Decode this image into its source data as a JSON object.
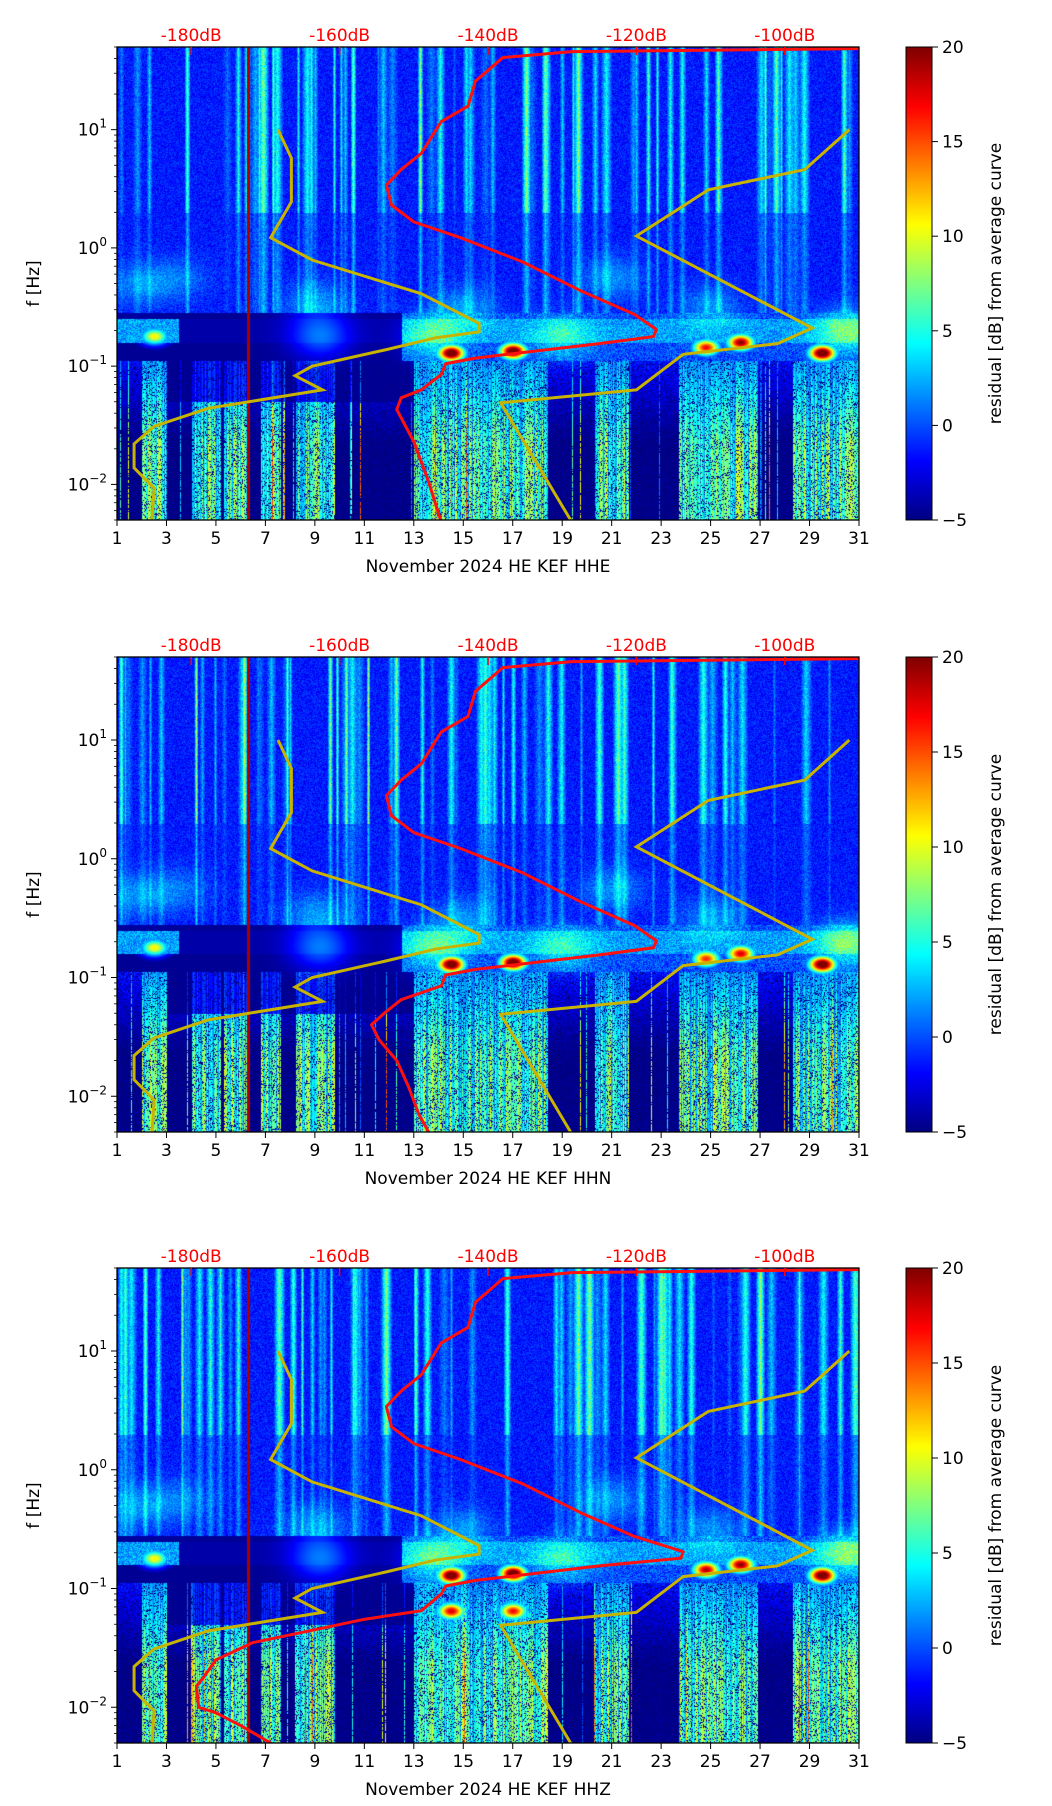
{
  "figure": {
    "ylabel": "f [Hz]",
    "colorbar_label": "residual [dB] from average curve",
    "colorbar_ticks": [
      "20",
      "15",
      "10",
      "5",
      "0",
      "−5"
    ],
    "colorbar_range": [
      -5,
      20
    ],
    "x_ticks": [
      "1",
      "3",
      "5",
      "7",
      "9",
      "11",
      "13",
      "15",
      "17",
      "19",
      "21",
      "23",
      "25",
      "27",
      "29",
      "31"
    ],
    "x_range_days": [
      1,
      31
    ],
    "y_ticks": [
      {
        "base": "10",
        "exp": "−2",
        "value": 0.01
      },
      {
        "base": "10",
        "exp": "−1",
        "value": 0.1
      },
      {
        "base": "10",
        "exp": "0",
        "value": 1
      },
      {
        "base": "10",
        "exp": "1",
        "value": 10
      }
    ],
    "y_range_hz": [
      0.005,
      50
    ],
    "top_ticks": [
      {
        "label": "-180dB",
        "db": -180
      },
      {
        "label": "-160dB",
        "db": -160
      },
      {
        "label": "-140dB",
        "db": -140
      },
      {
        "label": "-120dB",
        "db": -120
      },
      {
        "label": "-100dB",
        "db": -100
      }
    ],
    "db_axis_map": {
      "db_at_day4": -180,
      "db_per_day": 3.3333
    },
    "colors": {
      "power_curve": "#ff1010",
      "noise_models": "#c8b400",
      "label_red": "#ff0000"
    },
    "noise_model_low": [
      [
        -168.3,
        10
      ],
      [
        -166.5,
        5.75
      ],
      [
        -166.5,
        2.45
      ],
      [
        -169.3,
        1.22
      ],
      [
        -163.7,
        0.79
      ],
      [
        -149,
        0.41
      ],
      [
        -141.2,
        0.23
      ],
      [
        -141.2,
        0.195
      ],
      [
        -147,
        0.174
      ],
      [
        -153.7,
        0.138
      ],
      [
        -163.7,
        0.1
      ],
      [
        -166,
        0.083
      ],
      [
        -162.3,
        0.063
      ],
      [
        -177.7,
        0.044
      ],
      [
        -185,
        0.031
      ],
      [
        -187.7,
        0.022
      ],
      [
        -187.7,
        0.0138
      ],
      [
        -185,
        0.0093
      ],
      [
        -185.3,
        0.0048
      ]
    ],
    "noise_model_high": [
      [
        -91.3,
        10
      ],
      [
        -97.3,
        4.6
      ],
      [
        -110.3,
        3.1
      ],
      [
        -120,
        1.26
      ],
      [
        -96.3,
        0.21
      ],
      [
        -101,
        0.155
      ],
      [
        -113.7,
        0.126
      ],
      [
        -120,
        0.063
      ],
      [
        -138.3,
        0.049
      ],
      [
        -128.7,
        0.0048
      ]
    ]
  },
  "chart_data": [
    {
      "type": "heatmap",
      "title": "",
      "xlabel": "November 2024 HE KEF  HHE",
      "ylabel": "f [Hz]",
      "channel": "HHE",
      "hotspots": [
        [
          14.5,
          0.13,
          20
        ],
        [
          17.0,
          0.135,
          20
        ],
        [
          24.8,
          0.145,
          14
        ],
        [
          26.2,
          0.16,
          17
        ],
        [
          29.5,
          0.13,
          20
        ],
        [
          2.5,
          0.18,
          8
        ]
      ],
      "power_curve_db_hz": [
        [
          -90,
          48.4
        ],
        [
          -128.7,
          45.7
        ],
        [
          -138,
          40.7
        ],
        [
          -141.7,
          25.7
        ],
        [
          -142.7,
          15.8
        ],
        [
          -146.3,
          11.7
        ],
        [
          -149,
          6.3
        ],
        [
          -151.7,
          4.6
        ],
        [
          -153.7,
          3.4
        ],
        [
          -153,
          2.3
        ],
        [
          -150,
          1.66
        ],
        [
          -143.7,
          1.22
        ],
        [
          -135.3,
          0.76
        ],
        [
          -127.7,
          0.44
        ],
        [
          -120.3,
          0.275
        ],
        [
          -117.3,
          0.204
        ],
        [
          -117.7,
          0.178
        ],
        [
          -125,
          0.155
        ],
        [
          -141.7,
          0.117
        ],
        [
          -145.7,
          0.105
        ],
        [
          -146.3,
          0.085
        ],
        [
          -149,
          0.063
        ],
        [
          -151.7,
          0.054
        ],
        [
          -152.3,
          0.043
        ],
        [
          -150,
          0.023
        ],
        [
          -148,
          0.0105
        ],
        [
          -146.3,
          0.0048
        ]
      ]
    },
    {
      "type": "heatmap",
      "title": "",
      "xlabel": "November 2024 HE KEF  HHN",
      "ylabel": "f [Hz]",
      "channel": "HHN",
      "hotspots": [
        [
          14.5,
          0.13,
          20
        ],
        [
          17.0,
          0.135,
          20
        ],
        [
          24.8,
          0.145,
          13
        ],
        [
          26.2,
          0.16,
          15
        ],
        [
          29.5,
          0.13,
          20
        ],
        [
          2.5,
          0.18,
          8
        ]
      ],
      "power_curve_db_hz": [
        [
          -90,
          48.4
        ],
        [
          -128.7,
          45.7
        ],
        [
          -138,
          40.7
        ],
        [
          -141.7,
          25.7
        ],
        [
          -142.7,
          15.8
        ],
        [
          -146.3,
          11.7
        ],
        [
          -149,
          6.3
        ],
        [
          -151.7,
          4.6
        ],
        [
          -153.7,
          3.4
        ],
        [
          -153,
          2.3
        ],
        [
          -150,
          1.66
        ],
        [
          -143.7,
          1.22
        ],
        [
          -135.3,
          0.76
        ],
        [
          -127.7,
          0.44
        ],
        [
          -120.3,
          0.275
        ],
        [
          -117.3,
          0.204
        ],
        [
          -117.7,
          0.178
        ],
        [
          -125,
          0.155
        ],
        [
          -141.7,
          0.117
        ],
        [
          -145.7,
          0.105
        ],
        [
          -146.3,
          0.085
        ],
        [
          -151.7,
          0.065
        ],
        [
          -154,
          0.05
        ],
        [
          -155.7,
          0.04
        ],
        [
          -154.7,
          0.03
        ],
        [
          -152.3,
          0.02
        ],
        [
          -150.7,
          0.012
        ],
        [
          -149.3,
          0.007
        ],
        [
          -148,
          0.005
        ]
      ]
    },
    {
      "type": "heatmap",
      "title": "",
      "xlabel": "November 2024 HE KEF  HHZ",
      "ylabel": "f [Hz]",
      "channel": "HHZ",
      "hotspots": [
        [
          14.5,
          0.13,
          20
        ],
        [
          17.0,
          0.135,
          20
        ],
        [
          24.8,
          0.145,
          16
        ],
        [
          26.2,
          0.16,
          17
        ],
        [
          29.5,
          0.13,
          20
        ],
        [
          2.5,
          0.18,
          8
        ],
        [
          14.5,
          0.065,
          15
        ],
        [
          17.0,
          0.065,
          14
        ]
      ],
      "power_curve_db_hz": [
        [
          -90,
          48.4
        ],
        [
          -128.7,
          45.7
        ],
        [
          -138,
          40.7
        ],
        [
          -141.7,
          25.7
        ],
        [
          -142.7,
          15.8
        ],
        [
          -146.3,
          11.7
        ],
        [
          -149,
          6.3
        ],
        [
          -151.7,
          4.6
        ],
        [
          -153.7,
          3.4
        ],
        [
          -153,
          2.3
        ],
        [
          -150,
          1.66
        ],
        [
          -143.7,
          1.22
        ],
        [
          -135.3,
          0.76
        ],
        [
          -127.7,
          0.44
        ],
        [
          -120.3,
          0.275
        ],
        [
          -113.7,
          0.204
        ],
        [
          -114,
          0.18
        ],
        [
          -125,
          0.155
        ],
        [
          -141.7,
          0.117
        ],
        [
          -145.7,
          0.105
        ],
        [
          -146.3,
          0.09
        ],
        [
          -149,
          0.065
        ],
        [
          -156.7,
          0.055
        ],
        [
          -163.3,
          0.045
        ],
        [
          -171.7,
          0.035
        ],
        [
          -176.7,
          0.025
        ],
        [
          -178.3,
          0.018
        ],
        [
          -179.3,
          0.015
        ],
        [
          -179,
          0.01
        ],
        [
          -176.7,
          0.009
        ],
        [
          -173.3,
          0.007
        ],
        [
          -169.3,
          0.005
        ]
      ]
    }
  ]
}
